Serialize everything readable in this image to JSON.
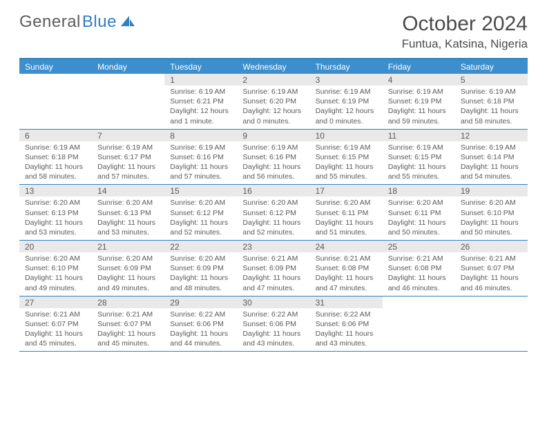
{
  "logo": {
    "textA": "General",
    "textB": "Blue"
  },
  "title": "October 2024",
  "location": "Funtua, Katsina, Nigeria",
  "colors": {
    "accent": "#3d8ecd",
    "rule": "#2f7fc2",
    "dayNumBg": "#e9e9e9",
    "text": "#5a5a5a"
  },
  "daysOfWeek": [
    "Sunday",
    "Monday",
    "Tuesday",
    "Wednesday",
    "Thursday",
    "Friday",
    "Saturday"
  ],
  "startOffset": 2,
  "days": [
    {
      "n": 1,
      "r": "6:19 AM",
      "s": "6:21 PM",
      "d": "12 hours and 1 minute."
    },
    {
      "n": 2,
      "r": "6:19 AM",
      "s": "6:20 PM",
      "d": "12 hours and 0 minutes."
    },
    {
      "n": 3,
      "r": "6:19 AM",
      "s": "6:19 PM",
      "d": "12 hours and 0 minutes."
    },
    {
      "n": 4,
      "r": "6:19 AM",
      "s": "6:19 PM",
      "d": "11 hours and 59 minutes."
    },
    {
      "n": 5,
      "r": "6:19 AM",
      "s": "6:18 PM",
      "d": "11 hours and 58 minutes."
    },
    {
      "n": 6,
      "r": "6:19 AM",
      "s": "6:18 PM",
      "d": "11 hours and 58 minutes."
    },
    {
      "n": 7,
      "r": "6:19 AM",
      "s": "6:17 PM",
      "d": "11 hours and 57 minutes."
    },
    {
      "n": 8,
      "r": "6:19 AM",
      "s": "6:16 PM",
      "d": "11 hours and 57 minutes."
    },
    {
      "n": 9,
      "r": "6:19 AM",
      "s": "6:16 PM",
      "d": "11 hours and 56 minutes."
    },
    {
      "n": 10,
      "r": "6:19 AM",
      "s": "6:15 PM",
      "d": "11 hours and 55 minutes."
    },
    {
      "n": 11,
      "r": "6:19 AM",
      "s": "6:15 PM",
      "d": "11 hours and 55 minutes."
    },
    {
      "n": 12,
      "r": "6:19 AM",
      "s": "6:14 PM",
      "d": "11 hours and 54 minutes."
    },
    {
      "n": 13,
      "r": "6:20 AM",
      "s": "6:13 PM",
      "d": "11 hours and 53 minutes."
    },
    {
      "n": 14,
      "r": "6:20 AM",
      "s": "6:13 PM",
      "d": "11 hours and 53 minutes."
    },
    {
      "n": 15,
      "r": "6:20 AM",
      "s": "6:12 PM",
      "d": "11 hours and 52 minutes."
    },
    {
      "n": 16,
      "r": "6:20 AM",
      "s": "6:12 PM",
      "d": "11 hours and 52 minutes."
    },
    {
      "n": 17,
      "r": "6:20 AM",
      "s": "6:11 PM",
      "d": "11 hours and 51 minutes."
    },
    {
      "n": 18,
      "r": "6:20 AM",
      "s": "6:11 PM",
      "d": "11 hours and 50 minutes."
    },
    {
      "n": 19,
      "r": "6:20 AM",
      "s": "6:10 PM",
      "d": "11 hours and 50 minutes."
    },
    {
      "n": 20,
      "r": "6:20 AM",
      "s": "6:10 PM",
      "d": "11 hours and 49 minutes."
    },
    {
      "n": 21,
      "r": "6:20 AM",
      "s": "6:09 PM",
      "d": "11 hours and 49 minutes."
    },
    {
      "n": 22,
      "r": "6:20 AM",
      "s": "6:09 PM",
      "d": "11 hours and 48 minutes."
    },
    {
      "n": 23,
      "r": "6:21 AM",
      "s": "6:09 PM",
      "d": "11 hours and 47 minutes."
    },
    {
      "n": 24,
      "r": "6:21 AM",
      "s": "6:08 PM",
      "d": "11 hours and 47 minutes."
    },
    {
      "n": 25,
      "r": "6:21 AM",
      "s": "6:08 PM",
      "d": "11 hours and 46 minutes."
    },
    {
      "n": 26,
      "r": "6:21 AM",
      "s": "6:07 PM",
      "d": "11 hours and 46 minutes."
    },
    {
      "n": 27,
      "r": "6:21 AM",
      "s": "6:07 PM",
      "d": "11 hours and 45 minutes."
    },
    {
      "n": 28,
      "r": "6:21 AM",
      "s": "6:07 PM",
      "d": "11 hours and 45 minutes."
    },
    {
      "n": 29,
      "r": "6:22 AM",
      "s": "6:06 PM",
      "d": "11 hours and 44 minutes."
    },
    {
      "n": 30,
      "r": "6:22 AM",
      "s": "6:06 PM",
      "d": "11 hours and 43 minutes."
    },
    {
      "n": 31,
      "r": "6:22 AM",
      "s": "6:06 PM",
      "d": "11 hours and 43 minutes."
    }
  ]
}
